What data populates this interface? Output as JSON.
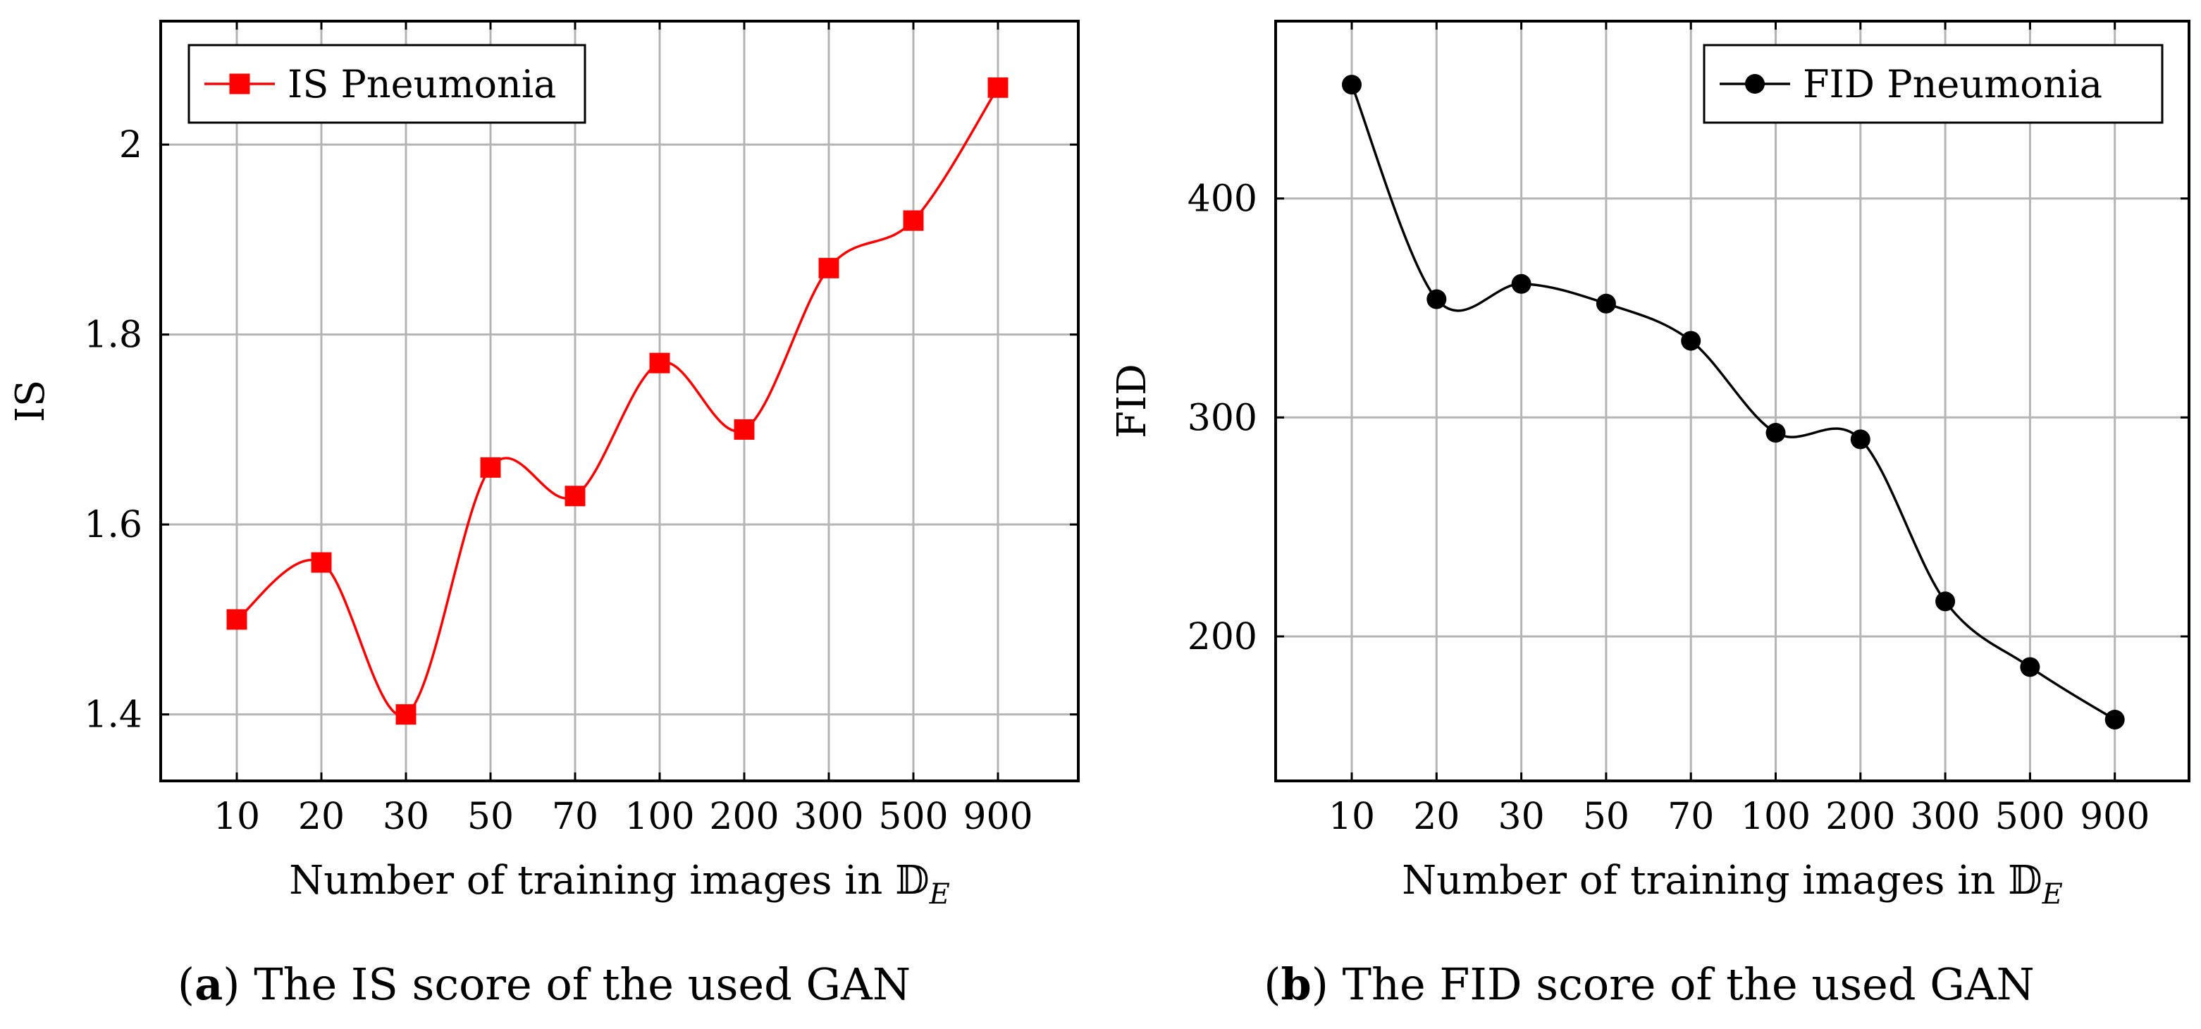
{
  "chart_data": [
    {
      "type": "line",
      "panel": "a",
      "categories": [
        "10",
        "20",
        "30",
        "50",
        "70",
        "100",
        "200",
        "300",
        "500",
        "900"
      ],
      "series": [
        {
          "name": "IS Pneumonia",
          "values": [
            1.5,
            1.56,
            1.4,
            1.66,
            1.63,
            1.77,
            1.7,
            1.87,
            1.92,
            2.06
          ],
          "color": "#ff0000",
          "marker": "square"
        }
      ],
      "title": "",
      "xlabel_main": "Number of training images in ",
      "xlabel_symbol": "𝔻",
      "xlabel_sub": "E",
      "ylabel": "IS",
      "ylim": [
        1.33,
        2.13
      ],
      "yticks": [
        1.4,
        1.6,
        1.8,
        2.0
      ],
      "ytick_labels": [
        "1.4",
        "1.6",
        "1.8",
        "2"
      ],
      "grid": true,
      "legend": "top-left",
      "caption_letter": "a",
      "caption_text": ") The IS score of the used GAN",
      "caption_open": "("
    },
    {
      "type": "line",
      "panel": "b",
      "categories": [
        "10",
        "20",
        "30",
        "50",
        "70",
        "100",
        "200",
        "300",
        "500",
        "900"
      ],
      "series": [
        {
          "name": "FID Pneumonia",
          "values": [
            452,
            354,
            361,
            352,
            335,
            293,
            290,
            216,
            186,
            162
          ],
          "color": "#000000",
          "marker": "circle"
        }
      ],
      "title": "",
      "xlabel_main": "Number of training images in ",
      "xlabel_symbol": "𝔻",
      "xlabel_sub": "E",
      "ylabel": "FID",
      "ylim": [
        134,
        481
      ],
      "yticks": [
        200,
        300,
        400
      ],
      "ytick_labels": [
        "200",
        "300",
        "400"
      ],
      "grid": true,
      "legend": "top-right",
      "caption_letter": "b",
      "caption_text": ") The FID score of the used GAN",
      "caption_open": "("
    }
  ]
}
